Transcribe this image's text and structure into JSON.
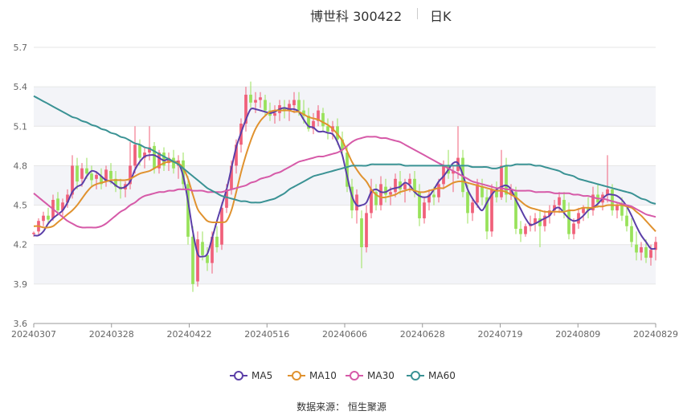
{
  "title": {
    "name": "博世科 300422",
    "period": "日K"
  },
  "source": {
    "label": "数据来源：",
    "value": "恒生聚源"
  },
  "legend": [
    {
      "name": "MA5",
      "color": "#5b3fa8"
    },
    {
      "name": "MA10",
      "color": "#e0922f"
    },
    {
      "name": "MA30",
      "color": "#d65aa8"
    },
    {
      "name": "MA60",
      "color": "#3a9294"
    }
  ],
  "colors": {
    "up": "#f0607a",
    "down": "#98e25a",
    "grid": "#e6e6e6",
    "band": "#f3f4f8"
  },
  "chart_data": {
    "type": "candlestick",
    "ylim": [
      3.6,
      5.7
    ],
    "yticks": [
      "5.7",
      "5.4",
      "5.1",
      "4.8",
      "4.5",
      "4.2",
      "3.9",
      "3.6"
    ],
    "xtick_labels": [
      "20240307",
      "20240328",
      "20240422",
      "20240516",
      "20240606",
      "20240628",
      "20240719",
      "20240809",
      "20240829"
    ],
    "ohlc": [
      [
        4.28,
        4.3,
        4.26,
        4.29
      ],
      [
        4.3,
        4.4,
        4.27,
        4.38
      ],
      [
        4.38,
        4.45,
        4.34,
        4.42
      ],
      [
        4.42,
        4.48,
        4.36,
        4.39
      ],
      [
        4.4,
        4.58,
        4.38,
        4.54
      ],
      [
        4.55,
        4.6,
        4.42,
        4.46
      ],
      [
        4.46,
        4.55,
        4.42,
        4.52
      ],
      [
        4.52,
        4.62,
        4.48,
        4.58
      ],
      [
        4.58,
        4.88,
        4.55,
        4.8
      ],
      [
        4.8,
        4.86,
        4.62,
        4.68
      ],
      [
        4.7,
        4.82,
        4.64,
        4.78
      ],
      [
        4.78,
        4.86,
        4.7,
        4.74
      ],
      [
        4.74,
        4.8,
        4.64,
        4.69
      ],
      [
        4.7,
        4.76,
        4.62,
        4.73
      ],
      [
        4.72,
        4.78,
        4.62,
        4.66
      ],
      [
        4.68,
        4.8,
        4.64,
        4.77
      ],
      [
        4.76,
        4.82,
        4.66,
        4.7
      ],
      [
        4.7,
        4.76,
        4.6,
        4.64
      ],
      [
        4.64,
        4.7,
        4.55,
        4.62
      ],
      [
        4.62,
        4.68,
        4.56,
        4.66
      ],
      [
        4.66,
        4.98,
        4.62,
        4.8
      ],
      [
        4.8,
        5.1,
        4.74,
        4.96
      ],
      [
        4.96,
        5.0,
        4.8,
        4.86
      ],
      [
        4.86,
        4.94,
        4.78,
        4.9
      ],
      [
        4.9,
        5.1,
        4.84,
        4.94
      ],
      [
        4.95,
        4.98,
        4.74,
        4.78
      ],
      [
        4.78,
        4.92,
        4.74,
        4.9
      ],
      [
        4.9,
        4.94,
        4.76,
        4.8
      ],
      [
        4.82,
        4.9,
        4.76,
        4.86
      ],
      [
        4.86,
        4.92,
        4.74,
        4.78
      ],
      [
        4.8,
        4.88,
        4.7,
        4.84
      ],
      [
        4.84,
        4.9,
        4.62,
        4.66
      ],
      [
        4.66,
        4.72,
        4.2,
        4.26
      ],
      [
        4.26,
        4.34,
        3.84,
        3.9
      ],
      [
        3.92,
        4.3,
        3.88,
        4.24
      ],
      [
        4.22,
        4.3,
        4.08,
        4.12
      ],
      [
        4.12,
        4.18,
        4.0,
        4.06
      ],
      [
        4.06,
        4.3,
        3.98,
        4.26
      ],
      [
        4.26,
        4.34,
        4.14,
        4.18
      ],
      [
        4.2,
        4.52,
        4.16,
        4.48
      ],
      [
        4.48,
        4.66,
        4.44,
        4.62
      ],
      [
        4.62,
        4.84,
        4.58,
        4.8
      ],
      [
        4.8,
        5.0,
        4.74,
        4.96
      ],
      [
        4.96,
        5.16,
        4.9,
        5.12
      ],
      [
        5.12,
        5.4,
        5.06,
        5.34
      ],
      [
        5.34,
        5.44,
        5.24,
        5.28
      ],
      [
        5.28,
        5.36,
        5.2,
        5.3
      ],
      [
        5.3,
        5.36,
        5.24,
        5.32
      ],
      [
        5.3,
        5.34,
        5.18,
        5.22
      ],
      [
        5.22,
        5.28,
        5.14,
        5.18
      ],
      [
        5.18,
        5.26,
        5.12,
        5.2
      ],
      [
        5.2,
        5.3,
        5.14,
        5.26
      ],
      [
        5.24,
        5.3,
        5.16,
        5.22
      ],
      [
        5.22,
        5.3,
        5.14,
        5.27
      ],
      [
        5.26,
        5.36,
        5.2,
        5.3
      ],
      [
        5.3,
        5.36,
        5.18,
        5.22
      ],
      [
        5.22,
        5.3,
        5.12,
        5.18
      ],
      [
        5.18,
        5.24,
        5.06,
        5.08
      ],
      [
        5.08,
        5.2,
        5.04,
        5.14
      ],
      [
        5.14,
        5.26,
        5.1,
        5.22
      ],
      [
        5.2,
        5.24,
        5.06,
        5.1
      ],
      [
        5.1,
        5.16,
        5.0,
        5.06
      ],
      [
        5.06,
        5.14,
        5.0,
        5.1
      ],
      [
        5.1,
        5.16,
        4.96,
        5.0
      ],
      [
        5.0,
        5.06,
        4.88,
        4.92
      ],
      [
        4.9,
        4.96,
        4.6,
        4.64
      ],
      [
        4.64,
        4.7,
        4.4,
        4.46
      ],
      [
        4.46,
        4.62,
        4.36,
        4.58
      ],
      [
        4.4,
        4.46,
        4.02,
        4.18
      ],
      [
        4.18,
        4.5,
        4.14,
        4.44
      ],
      [
        4.44,
        4.7,
        4.4,
        4.62
      ],
      [
        4.6,
        4.66,
        4.46,
        4.5
      ],
      [
        4.5,
        4.72,
        4.46,
        4.66
      ],
      [
        4.64,
        4.7,
        4.52,
        4.58
      ],
      [
        4.58,
        4.64,
        4.5,
        4.6
      ],
      [
        4.6,
        4.74,
        4.56,
        4.7
      ],
      [
        4.68,
        4.76,
        4.58,
        4.62
      ],
      [
        4.62,
        4.7,
        4.52,
        4.66
      ],
      [
        4.66,
        4.74,
        4.6,
        4.7
      ],
      [
        4.7,
        4.76,
        4.56,
        4.6
      ],
      [
        4.6,
        4.66,
        4.34,
        4.4
      ],
      [
        4.4,
        4.56,
        4.36,
        4.52
      ],
      [
        4.52,
        4.62,
        4.46,
        4.58
      ],
      [
        4.58,
        4.64,
        4.5,
        4.56
      ],
      [
        4.56,
        4.7,
        4.52,
        4.66
      ],
      [
        4.66,
        4.84,
        4.62,
        4.8
      ],
      [
        4.8,
        4.92,
        4.7,
        4.74
      ],
      [
        4.74,
        4.8,
        4.6,
        4.76
      ],
      [
        4.76,
        5.1,
        4.7,
        4.86
      ],
      [
        4.86,
        4.92,
        4.56,
        4.6
      ],
      [
        4.6,
        4.66,
        4.36,
        4.44
      ],
      [
        4.44,
        4.56,
        4.38,
        4.52
      ],
      [
        4.52,
        4.7,
        4.48,
        4.66
      ],
      [
        4.64,
        4.7,
        4.5,
        4.56
      ],
      [
        4.56,
        4.62,
        4.24,
        4.3
      ],
      [
        4.3,
        4.66,
        4.26,
        4.62
      ],
      [
        4.62,
        4.68,
        4.52,
        4.56
      ],
      [
        4.56,
        4.92,
        4.54,
        4.8
      ],
      [
        4.8,
        4.86,
        4.52,
        4.58
      ],
      [
        4.58,
        4.66,
        4.54,
        4.62
      ],
      [
        4.6,
        4.64,
        4.28,
        4.32
      ],
      [
        4.32,
        4.38,
        4.22,
        4.28
      ],
      [
        4.28,
        4.36,
        4.26,
        4.34
      ],
      [
        4.34,
        4.42,
        4.3,
        4.36
      ],
      [
        4.36,
        4.44,
        4.3,
        4.4
      ],
      [
        4.4,
        4.46,
        4.18,
        4.34
      ],
      [
        4.34,
        4.46,
        4.3,
        4.42
      ],
      [
        4.42,
        4.5,
        4.36,
        4.46
      ],
      [
        4.46,
        4.54,
        4.42,
        4.5
      ],
      [
        4.5,
        4.6,
        4.44,
        4.56
      ],
      [
        4.54,
        4.6,
        4.4,
        4.46
      ],
      [
        4.46,
        4.52,
        4.24,
        4.28
      ],
      [
        4.28,
        4.4,
        4.24,
        4.36
      ],
      [
        4.36,
        4.48,
        4.32,
        4.44
      ],
      [
        4.44,
        4.5,
        4.38,
        4.48
      ],
      [
        4.48,
        4.56,
        4.4,
        4.46
      ],
      [
        4.46,
        4.64,
        4.42,
        4.58
      ],
      [
        4.58,
        4.66,
        4.48,
        4.52
      ],
      [
        4.52,
        4.6,
        4.46,
        4.58
      ],
      [
        4.58,
        4.88,
        4.52,
        4.62
      ],
      [
        4.62,
        4.66,
        4.42,
        4.46
      ],
      [
        4.46,
        4.52,
        4.4,
        4.5
      ],
      [
        4.5,
        4.56,
        4.38,
        4.42
      ],
      [
        4.42,
        4.48,
        4.3,
        4.34
      ],
      [
        4.34,
        4.4,
        4.18,
        4.22
      ],
      [
        4.2,
        4.3,
        4.08,
        4.14
      ],
      [
        4.14,
        4.22,
        4.08,
        4.18
      ],
      [
        4.18,
        4.24,
        4.06,
        4.1
      ],
      [
        4.1,
        4.2,
        4.04,
        4.16
      ],
      [
        4.16,
        4.26,
        4.08,
        4.22
      ]
    ],
    "series": [
      {
        "name": "MA5",
        "values": [
          4.27,
          4.27,
          4.3,
          4.36,
          4.4,
          4.43,
          4.46,
          4.52,
          4.6,
          4.64,
          4.66,
          4.72,
          4.76,
          4.75,
          4.72,
          4.69,
          4.68,
          4.65,
          4.63,
          4.64,
          4.68,
          4.77,
          4.83,
          4.87,
          4.88,
          4.88,
          4.86,
          4.84,
          4.85,
          4.83,
          4.82,
          4.72,
          4.53,
          4.3,
          4.13,
          4.11,
          4.13,
          4.25,
          4.38,
          4.5,
          4.62,
          4.78,
          4.94,
          5.05,
          5.15,
          5.23,
          5.23,
          5.22,
          5.21,
          5.2,
          5.21,
          5.23,
          5.24,
          5.23,
          5.23,
          5.21,
          5.15,
          5.1,
          5.09,
          5.06,
          5.06,
          5.05,
          5.04,
          4.98,
          4.88,
          4.72,
          4.57,
          4.5,
          4.5,
          4.52,
          4.6,
          4.62,
          4.6,
          4.6,
          4.62,
          4.63,
          4.64,
          4.67,
          4.65,
          4.6,
          4.57,
          4.56,
          4.57,
          4.62,
          4.68,
          4.72,
          4.77,
          4.82,
          4.82,
          4.73,
          4.62,
          4.55,
          4.5,
          4.46,
          4.52,
          4.58,
          4.62,
          4.64,
          4.65,
          4.62,
          4.54,
          4.47,
          4.4,
          4.35,
          4.36,
          4.38,
          4.4,
          4.42,
          4.47,
          4.48,
          4.44,
          4.4,
          4.38,
          4.39,
          4.42,
          4.46,
          4.48,
          4.51,
          4.55,
          4.58,
          4.58,
          4.57,
          4.54,
          4.49,
          4.42,
          4.34,
          4.27,
          4.22,
          4.17,
          4.17
        ]
      },
      {
        "name": "MA10",
        "values": [
          4.34,
          4.34,
          4.33,
          4.33,
          4.34,
          4.37,
          4.4,
          4.43,
          4.46,
          4.5,
          4.55,
          4.6,
          4.64,
          4.66,
          4.67,
          4.68,
          4.69,
          4.69,
          4.69,
          4.69,
          4.7,
          4.72,
          4.74,
          4.75,
          4.76,
          4.78,
          4.8,
          4.82,
          4.83,
          4.83,
          4.82,
          4.78,
          4.7,
          4.58,
          4.47,
          4.42,
          4.38,
          4.37,
          4.37,
          4.37,
          4.38,
          4.46,
          4.6,
          4.75,
          4.88,
          4.99,
          5.08,
          5.14,
          5.18,
          5.21,
          5.22,
          5.22,
          5.22,
          5.22,
          5.21,
          5.21,
          5.19,
          5.17,
          5.16,
          5.15,
          5.13,
          5.11,
          5.08,
          5.04,
          4.99,
          4.91,
          4.83,
          4.77,
          4.72,
          4.68,
          4.62,
          4.58,
          4.56,
          4.56,
          4.57,
          4.58,
          4.6,
          4.61,
          4.62,
          4.61,
          4.6,
          4.6,
          4.61,
          4.62,
          4.63,
          4.63,
          4.65,
          4.67,
          4.68,
          4.68,
          4.67,
          4.66,
          4.65,
          4.64,
          4.63,
          4.62,
          4.61,
          4.61,
          4.6,
          4.58,
          4.56,
          4.53,
          4.5,
          4.48,
          4.47,
          4.46,
          4.45,
          4.45,
          4.45,
          4.45,
          4.45,
          4.46,
          4.46,
          4.47,
          4.48,
          4.48,
          4.48,
          4.49,
          4.49,
          4.5,
          4.5,
          4.5,
          4.5,
          4.49,
          4.48,
          4.45,
          4.42,
          4.38,
          4.34,
          4.3
        ]
      },
      {
        "name": "MA30",
        "values": [
          4.59,
          4.56,
          4.53,
          4.5,
          4.47,
          4.44,
          4.41,
          4.38,
          4.36,
          4.34,
          4.33,
          4.33,
          4.33,
          4.33,
          4.34,
          4.36,
          4.39,
          4.42,
          4.45,
          4.47,
          4.5,
          4.52,
          4.55,
          4.57,
          4.58,
          4.59,
          4.6,
          4.6,
          4.61,
          4.61,
          4.62,
          4.62,
          4.62,
          4.61,
          4.61,
          4.61,
          4.6,
          4.6,
          4.6,
          4.6,
          4.61,
          4.62,
          4.63,
          4.64,
          4.65,
          4.67,
          4.68,
          4.7,
          4.71,
          4.72,
          4.74,
          4.75,
          4.77,
          4.79,
          4.81,
          4.83,
          4.84,
          4.85,
          4.86,
          4.87,
          4.87,
          4.88,
          4.89,
          4.9,
          4.92,
          4.95,
          4.98,
          5.0,
          5.01,
          5.02,
          5.02,
          5.02,
          5.01,
          5.01,
          5.0,
          4.99,
          4.98,
          4.96,
          4.94,
          4.92,
          4.9,
          4.88,
          4.86,
          4.84,
          4.82,
          4.8,
          4.78,
          4.76,
          4.74,
          4.72,
          4.7,
          4.68,
          4.67,
          4.66,
          4.65,
          4.64,
          4.63,
          4.63,
          4.62,
          4.62,
          4.61,
          4.61,
          4.61,
          4.61,
          4.6,
          4.6,
          4.6,
          4.6,
          4.59,
          4.59,
          4.59,
          4.59,
          4.58,
          4.58,
          4.57,
          4.57,
          4.56,
          4.55,
          4.55,
          4.54,
          4.53,
          4.52,
          4.51,
          4.5,
          4.49,
          4.47,
          4.45,
          4.43,
          4.42,
          4.41
        ]
      },
      {
        "name": "MA60",
        "values": [
          5.33,
          5.31,
          5.29,
          5.27,
          5.25,
          5.23,
          5.21,
          5.19,
          5.17,
          5.16,
          5.14,
          5.13,
          5.11,
          5.1,
          5.08,
          5.07,
          5.05,
          5.04,
          5.02,
          5.01,
          4.99,
          4.97,
          4.96,
          4.94,
          4.93,
          4.91,
          4.89,
          4.87,
          4.85,
          4.83,
          4.81,
          4.78,
          4.75,
          4.72,
          4.69,
          4.66,
          4.63,
          4.61,
          4.59,
          4.57,
          4.56,
          4.55,
          4.54,
          4.53,
          4.53,
          4.52,
          4.52,
          4.52,
          4.53,
          4.54,
          4.55,
          4.57,
          4.59,
          4.62,
          4.64,
          4.66,
          4.68,
          4.7,
          4.72,
          4.73,
          4.74,
          4.75,
          4.76,
          4.77,
          4.78,
          4.79,
          4.8,
          4.8,
          4.8,
          4.8,
          4.81,
          4.81,
          4.81,
          4.81,
          4.81,
          4.81,
          4.81,
          4.8,
          4.8,
          4.8,
          4.8,
          4.8,
          4.8,
          4.8,
          4.8,
          4.8,
          4.8,
          4.8,
          4.8,
          4.8,
          4.8,
          4.79,
          4.79,
          4.79,
          4.79,
          4.78,
          4.78,
          4.79,
          4.8,
          4.8,
          4.81,
          4.81,
          4.81,
          4.81,
          4.8,
          4.8,
          4.79,
          4.78,
          4.77,
          4.76,
          4.74,
          4.73,
          4.72,
          4.7,
          4.69,
          4.68,
          4.67,
          4.66,
          4.65,
          4.64,
          4.63,
          4.62,
          4.61,
          4.6,
          4.59,
          4.57,
          4.55,
          4.54,
          4.52,
          4.51
        ]
      }
    ]
  }
}
